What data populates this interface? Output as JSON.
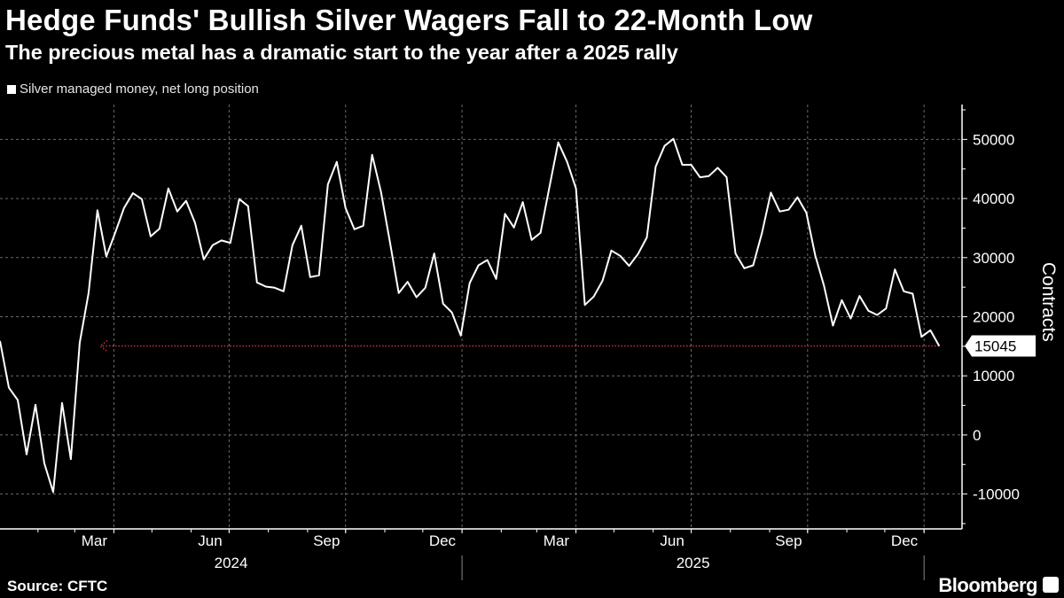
{
  "header": {
    "title": "Hedge Funds' Bullish Silver Wagers Fall to 22-Month Low",
    "subtitle": "The precious metal has a dramatic start to the year after a 2025 rally"
  },
  "footer": {
    "source": "Source: CFTC",
    "brand": "Bloomberg"
  },
  "chart_data": {
    "type": "line",
    "title": "Hedge Funds' Bullish Silver Wagers Fall to 22-Month Low",
    "subtitle": "The precious metal has a dramatic start to the year after a 2025 rally",
    "ylabel": "Contracts",
    "xlabel": "",
    "ylim": [
      -15000,
      55000
    ],
    "xlim": [
      "2024-01-02",
      "2026-01-31"
    ],
    "y_ticks": [
      50000,
      40000,
      30000,
      20000,
      10000,
      0,
      -10000
    ],
    "y_tick_labels": [
      "50000",
      "40000",
      "30000",
      "20000",
      "10000",
      "0",
      "-10000"
    ],
    "x_tick_labels": [
      {
        "label": "Mar",
        "month": "2024-03"
      },
      {
        "label": "Jun",
        "month": "2024-06"
      },
      {
        "label": "Sep",
        "month": "2024-09"
      },
      {
        "label": "Dec",
        "month": "2024-12"
      },
      {
        "label": "Mar",
        "month": "2025-03"
      },
      {
        "label": "Jun",
        "month": "2025-06"
      },
      {
        "label": "Sep",
        "month": "2025-09"
      },
      {
        "label": "Dec",
        "month": "2025-12"
      }
    ],
    "year_labels": [
      {
        "label": "2024",
        "year": 2024
      },
      {
        "label": "2025",
        "year": 2025
      }
    ],
    "grid": true,
    "y_axis_side": "right",
    "legend_position": "top-left",
    "last_value_label": "15045",
    "reference_line": {
      "value": 15045,
      "style": "dotted",
      "color": "#c8323c"
    },
    "colors": {
      "background": "#000000",
      "line": "#ffffff",
      "grid": "#6a6a6a",
      "reference": "#c8323c"
    },
    "series": [
      {
        "name": "Silver managed money, net long position",
        "x": [
          "2024-01-02",
          "2024-01-09",
          "2024-01-16",
          "2024-01-23",
          "2024-01-30",
          "2024-02-06",
          "2024-02-13",
          "2024-02-20",
          "2024-02-27",
          "2024-03-05",
          "2024-03-12",
          "2024-03-19",
          "2024-03-26",
          "2024-04-02",
          "2024-04-09",
          "2024-04-16",
          "2024-04-23",
          "2024-04-30",
          "2024-05-07",
          "2024-05-14",
          "2024-05-21",
          "2024-05-28",
          "2024-06-04",
          "2024-06-11",
          "2024-06-18",
          "2024-06-25",
          "2024-07-02",
          "2024-07-09",
          "2024-07-16",
          "2024-07-23",
          "2024-07-30",
          "2024-08-06",
          "2024-08-13",
          "2024-08-20",
          "2024-08-27",
          "2024-09-03",
          "2024-09-10",
          "2024-09-17",
          "2024-09-24",
          "2024-10-01",
          "2024-10-08",
          "2024-10-15",
          "2024-10-22",
          "2024-10-29",
          "2024-11-05",
          "2024-11-12",
          "2024-11-19",
          "2024-11-26",
          "2024-12-03",
          "2024-12-10",
          "2024-12-17",
          "2024-12-24",
          "2024-12-31",
          "2025-01-07",
          "2025-01-14",
          "2025-01-21",
          "2025-01-28",
          "2025-02-04",
          "2025-02-11",
          "2025-02-18",
          "2025-02-25",
          "2025-03-04",
          "2025-03-11",
          "2025-03-18",
          "2025-03-25",
          "2025-04-01",
          "2025-04-08",
          "2025-04-15",
          "2025-04-22",
          "2025-04-29",
          "2025-05-06",
          "2025-05-13",
          "2025-05-20",
          "2025-05-27",
          "2025-06-03",
          "2025-06-10",
          "2025-06-17",
          "2025-06-24",
          "2025-07-01",
          "2025-07-08",
          "2025-07-15",
          "2025-07-22",
          "2025-07-29",
          "2025-08-05",
          "2025-08-12",
          "2025-08-19",
          "2025-08-26",
          "2025-09-02",
          "2025-09-09",
          "2025-09-16",
          "2025-09-23",
          "2025-09-30",
          "2025-10-07",
          "2025-10-14",
          "2025-10-21",
          "2025-10-28",
          "2025-11-04",
          "2025-11-11",
          "2025-11-18",
          "2025-11-25",
          "2025-12-02",
          "2025-12-09",
          "2025-12-16",
          "2025-12-23",
          "2025-12-30",
          "2026-01-06",
          "2026-01-13"
        ],
        "values": [
          15900,
          8000,
          5900,
          -3300,
          5100,
          -4800,
          -9700,
          5400,
          -4100,
          15600,
          24000,
          38000,
          30200,
          34200,
          38400,
          40900,
          39900,
          33600,
          34900,
          41700,
          37800,
          39600,
          35900,
          29700,
          32100,
          32900,
          32500,
          39900,
          38700,
          25800,
          25100,
          24900,
          24300,
          32100,
          35400,
          26700,
          27000,
          42400,
          46200,
          38400,
          34800,
          35400,
          47400,
          41100,
          32700,
          24000,
          25900,
          23300,
          24900,
          30700,
          22200,
          20700,
          16800,
          25700,
          28700,
          29600,
          26400,
          37400,
          35100,
          39400,
          33000,
          34200,
          41900,
          49500,
          46200,
          41700,
          22000,
          23400,
          26100,
          31200,
          30300,
          28600,
          30600,
          33400,
          45400,
          48900,
          50100,
          45700,
          45700,
          43600,
          43800,
          45200,
          43600,
          30700,
          28200,
          28700,
          34200,
          41000,
          37800,
          38100,
          40200,
          37600,
          30400,
          25200,
          18500,
          22800,
          19700,
          23500,
          21000,
          20300,
          21400,
          28000,
          24300,
          23900,
          16600,
          17700,
          15045
        ]
      }
    ]
  }
}
